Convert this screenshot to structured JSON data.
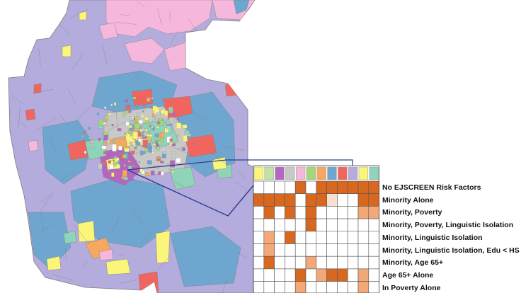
{
  "map": {
    "colors": {
      "background": "#ffffff",
      "lavender": "#b4acdc",
      "pink": "#f6b7dc",
      "blue": "#6fa6cf",
      "red": "#f0655d",
      "teal": "#8fd3b8",
      "yellow": "#fbf67a",
      "magenta": "#b466c0",
      "gray": "#c8c8c8",
      "orange": "#f6a860",
      "green": "#a7d67a",
      "boundary": "#7d7d7d",
      "callout": "#2b3f8f"
    }
  },
  "legend": {
    "header_swatches": [
      "#fbf67a",
      "#c3e3a5",
      "#b466c0",
      "#c8c8c8",
      "#f6b7dc",
      "#a7d67a",
      "#f6a860",
      "#6fa6cf",
      "#f0655d",
      "#b4acdc",
      "#fbf67a",
      "#8fd3b8"
    ],
    "shade_colors": [
      "#ffffff",
      "#fbe0d0",
      "#f2a877",
      "#d8681f"
    ],
    "rows": [
      {
        "label": "No EJSCREEN Risk Factors",
        "cells": [
          0,
          0,
          0,
          0,
          3,
          0,
          3,
          3,
          3,
          3,
          3,
          3
        ]
      },
      {
        "label": "Minority Alone",
        "cells": [
          3,
          3,
          3,
          3,
          0,
          3,
          3,
          1,
          0,
          0,
          3,
          3
        ]
      },
      {
        "label": "Minority, Poverty",
        "cells": [
          0,
          3,
          0,
          3,
          0,
          3,
          0,
          0,
          0,
          0,
          2,
          2
        ]
      },
      {
        "label": "Minority, Poverty, Linguistic Isolation",
        "cells": [
          0,
          0,
          0,
          0,
          0,
          3,
          0,
          0,
          0,
          0,
          0,
          0
        ]
      },
      {
        "label": "Minority, Linguistic Isolation",
        "cells": [
          0,
          2,
          0,
          3,
          0,
          0,
          0,
          0,
          0,
          0,
          0,
          0
        ]
      },
      {
        "label": "Minority, Linguistic Isolation, Edu < HS",
        "cells": [
          0,
          2,
          0,
          0,
          0,
          0,
          0,
          0,
          0,
          0,
          0,
          0
        ]
      },
      {
        "label": "Minority, Age 65+",
        "cells": [
          0,
          3,
          0,
          0,
          0,
          2,
          0,
          0,
          0,
          0,
          0,
          0
        ]
      },
      {
        "label": "Age 65+ Alone",
        "cells": [
          0,
          0,
          0,
          0,
          3,
          0,
          2,
          3,
          3,
          0,
          2,
          0
        ]
      },
      {
        "label": "In Poverty Alone",
        "cells": [
          0,
          0,
          0,
          0,
          2,
          0,
          0,
          0,
          0,
          0,
          2,
          0
        ]
      }
    ]
  }
}
